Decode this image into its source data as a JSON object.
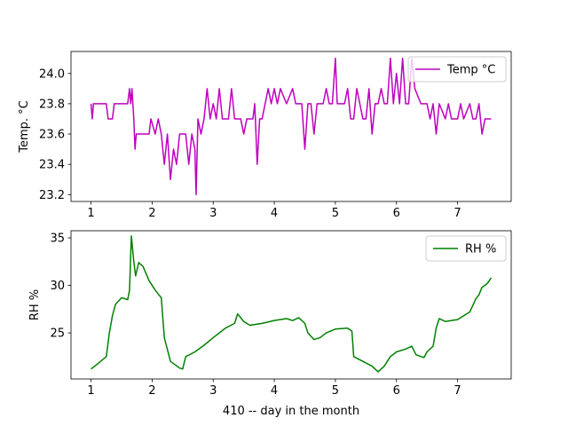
{
  "chart_data": [
    {
      "type": "line",
      "ylabel": "Temp. °C",
      "x": [
        1.0,
        1.02,
        1.04,
        1.25,
        1.28,
        1.35,
        1.38,
        1.6,
        1.63,
        1.65,
        1.67,
        1.7,
        1.72,
        1.74,
        1.95,
        1.98,
        2.05,
        2.1,
        2.15,
        2.2,
        2.25,
        2.3,
        2.35,
        2.4,
        2.45,
        2.55,
        2.6,
        2.65,
        2.7,
        2.72,
        2.75,
        2.8,
        2.85,
        2.9,
        2.95,
        3.0,
        3.05,
        3.1,
        3.15,
        3.25,
        3.3,
        3.35,
        3.45,
        3.5,
        3.55,
        3.65,
        3.68,
        3.72,
        3.76,
        3.8,
        3.85,
        3.9,
        3.95,
        4.0,
        4.05,
        4.1,
        4.2,
        4.3,
        4.35,
        4.45,
        4.5,
        4.55,
        4.6,
        4.65,
        4.7,
        4.8,
        4.85,
        4.9,
        4.95,
        5.0,
        5.03,
        5.15,
        5.2,
        5.25,
        5.3,
        5.35,
        5.4,
        5.45,
        5.5,
        5.55,
        5.6,
        5.65,
        5.7,
        5.75,
        5.8,
        5.85,
        5.9,
        5.95,
        6.0,
        6.05,
        6.1,
        6.15,
        6.2,
        6.25,
        6.3,
        6.4,
        6.5,
        6.55,
        6.6,
        6.65,
        6.7,
        6.8,
        6.85,
        6.9,
        7.0,
        7.05,
        7.1,
        7.2,
        7.25,
        7.3,
        7.35,
        7.4,
        7.45,
        7.55
      ],
      "series": [
        {
          "name": "Temp °C",
          "color": "#bf00bf",
          "values": [
            23.8,
            23.7,
            23.8,
            23.8,
            23.7,
            23.7,
            23.8,
            23.8,
            23.9,
            23.8,
            23.9,
            23.7,
            23.5,
            23.6,
            23.6,
            23.7,
            23.6,
            23.7,
            23.6,
            23.4,
            23.6,
            23.3,
            23.5,
            23.4,
            23.6,
            23.6,
            23.4,
            23.6,
            23.5,
            23.2,
            23.7,
            23.6,
            23.7,
            23.9,
            23.7,
            23.8,
            23.7,
            23.9,
            23.7,
            23.7,
            23.9,
            23.7,
            23.7,
            23.6,
            23.7,
            23.7,
            23.8,
            23.4,
            23.7,
            23.7,
            23.8,
            23.9,
            23.8,
            23.9,
            23.8,
            23.9,
            23.8,
            23.9,
            23.8,
            23.8,
            23.5,
            23.8,
            23.8,
            23.6,
            23.8,
            23.8,
            23.9,
            23.8,
            23.8,
            24.1,
            23.8,
            23.8,
            23.9,
            23.7,
            23.7,
            23.9,
            23.8,
            23.7,
            23.7,
            23.9,
            23.6,
            23.8,
            23.8,
            23.9,
            23.8,
            23.8,
            24.1,
            23.8,
            24.0,
            23.8,
            24.1,
            23.8,
            23.8,
            24.1,
            23.9,
            23.8,
            23.8,
            23.7,
            23.8,
            23.6,
            23.8,
            23.7,
            23.8,
            23.7,
            23.7,
            23.8,
            23.7,
            23.8,
            23.7,
            23.7,
            23.8,
            23.6,
            23.7,
            23.7
          ]
        }
      ],
      "xlim": [
        0.672,
        7.878
      ],
      "xticks": [
        1,
        2,
        3,
        4,
        5,
        6,
        7
      ],
      "ylim": [
        23.155,
        24.145
      ],
      "yticks": [
        23.2,
        23.4,
        23.6,
        23.8,
        {
          "value": 24,
          "label": "24.0"
        }
      ],
      "legend": "upper right"
    },
    {
      "type": "line",
      "ylabel": "RH %",
      "xlabel": "410 -- day in the month",
      "x": [
        1.0,
        1.1,
        1.25,
        1.3,
        1.35,
        1.4,
        1.5,
        1.6,
        1.63,
        1.66,
        1.7,
        1.73,
        1.78,
        1.85,
        1.95,
        2.05,
        2.15,
        2.2,
        2.3,
        2.45,
        2.5,
        2.55,
        2.7,
        2.85,
        3.0,
        3.2,
        3.35,
        3.4,
        3.5,
        3.6,
        3.8,
        4.0,
        4.2,
        4.3,
        4.4,
        4.5,
        4.55,
        4.65,
        4.75,
        4.85,
        5.0,
        5.2,
        5.27,
        5.3,
        5.45,
        5.6,
        5.7,
        5.8,
        5.9,
        6.0,
        6.15,
        6.25,
        6.32,
        6.45,
        6.5,
        6.6,
        6.65,
        6.7,
        6.8,
        7.0,
        7.2,
        7.3,
        7.35,
        7.4,
        7.45,
        7.5,
        7.55
      ],
      "series": [
        {
          "name": "RH %",
          "color": "#008000",
          "values": [
            21.2,
            21.7,
            22.5,
            25,
            26.8,
            28.0,
            28.7,
            28.5,
            29.5,
            35.2,
            32.5,
            31.0,
            32.4,
            32.0,
            30.5,
            29.5,
            28.7,
            24.5,
            22.0,
            21.3,
            21.2,
            22.5,
            23.0,
            23.7,
            24.5,
            25.5,
            26.0,
            27.0,
            26.2,
            25.8,
            26.0,
            26.3,
            26.5,
            26.3,
            26.6,
            26.0,
            25.0,
            24.3,
            24.5,
            25.0,
            25.4,
            25.5,
            25.2,
            22.5,
            22.0,
            21.5,
            20.9,
            21.5,
            22.5,
            23.0,
            23.3,
            23.6,
            22.7,
            22.4,
            23.0,
            23.6,
            25.5,
            26.5,
            26.2,
            26.4,
            27.2,
            28.6,
            29.0,
            29.8,
            30.0,
            30.3,
            30.8
          ]
        }
      ],
      "xlim": [
        0.672,
        7.878
      ],
      "xticks": [
        1,
        2,
        3,
        4,
        5,
        6,
        7
      ],
      "ylim": [
        20.15,
        35.75
      ],
      "yticks": [
        25,
        30,
        35
      ],
      "legend": "upper right"
    }
  ]
}
